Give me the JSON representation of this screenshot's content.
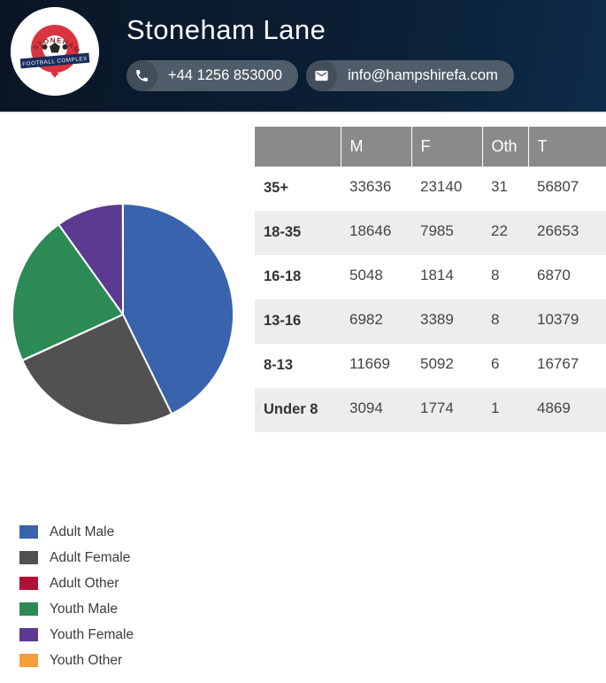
{
  "header": {
    "title": "Stoneham Lane",
    "phone": "+44 1256 853000",
    "email": "info@hampshirefa.com",
    "logo": {
      "arched_text": "STONEHAM LANE",
      "banner_text": "FOOTBALL COMPLEX"
    },
    "background_gradient": [
      "#0a1626",
      "#0d2b48"
    ]
  },
  "table": {
    "columns": [
      "",
      "M",
      "F",
      "Oth",
      "T"
    ],
    "rows": [
      {
        "label": "35+",
        "values": [
          "33636",
          "23140",
          "31",
          "56807"
        ]
      },
      {
        "label": "18-35",
        "values": [
          "18646",
          "7985",
          "22",
          "26653"
        ]
      },
      {
        "label": "16-18",
        "values": [
          "5048",
          "1814",
          "8",
          "6870"
        ]
      },
      {
        "label": "13-16",
        "values": [
          "6982",
          "3389",
          "8",
          "10379"
        ]
      },
      {
        "label": "8-13",
        "values": [
          "11669",
          "5092",
          "6",
          "16767"
        ]
      },
      {
        "label": "Under 8",
        "values": [
          "3094",
          "1774",
          "1",
          "4869"
        ]
      }
    ],
    "header_bg": "#8a8a8a",
    "stripe_bg": "#ededed"
  },
  "chart_data": {
    "type": "pie",
    "title": "",
    "legend_position": "bottom-left",
    "start_angle_deg": -90,
    "direction": "clockwise",
    "slices": [
      {
        "label": "Adult Male",
        "value": 52282,
        "color": "#3a63ae"
      },
      {
        "label": "Adult Female",
        "value": 31125,
        "color": "#515151"
      },
      {
        "label": "Adult Other",
        "value": 53,
        "color": "#b01235"
      },
      {
        "label": "Youth Male",
        "value": 26793,
        "color": "#2b8a55"
      },
      {
        "label": "Youth Female",
        "value": 12069,
        "color": "#5c3a92"
      },
      {
        "label": "Youth Other",
        "value": 23,
        "color": "#f59d38"
      }
    ]
  }
}
